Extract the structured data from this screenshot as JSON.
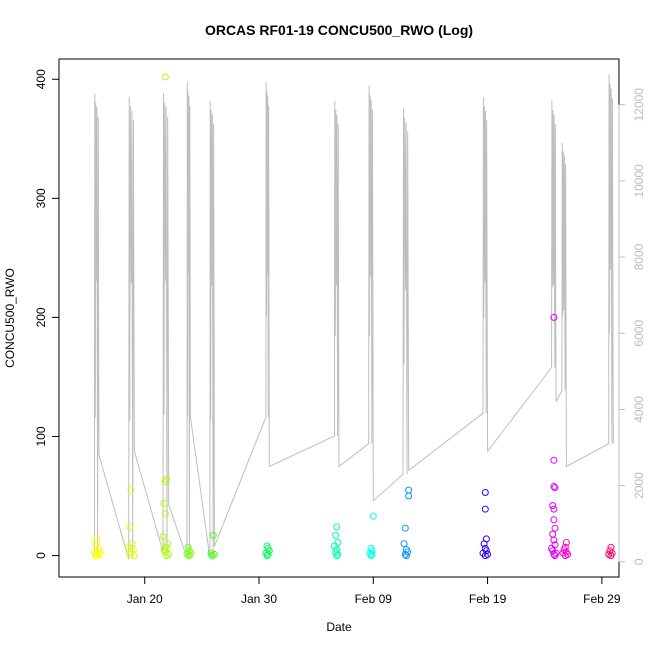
{
  "chart_data": {
    "type": "scatter",
    "title": "ORCAS RF01-19 CONCU500_RWO (Log)",
    "xlabel": "Date",
    "ylabel": "CONCU500_RWO",
    "x_ticks": [
      "Jan 20",
      "Jan 30",
      "Feb 09",
      "Feb 19",
      "Feb 29"
    ],
    "x_tick_values": [
      20,
      30,
      40,
      50,
      60
    ],
    "xlim": [
      12.5,
      61.5
    ],
    "ylim": [
      -18,
      417
    ],
    "y_ticks": [
      0,
      100,
      200,
      300,
      400
    ],
    "y2_ticks": [
      0,
      2000,
      4000,
      6000,
      8000,
      10000,
      12000
    ],
    "y2lim": [
      -400,
      13200
    ],
    "grid": false,
    "log_trace": {
      "color": "#bebebe",
      "segments": [
        {
          "x0": 15.6,
          "x1": 16.0,
          "low": 150,
          "peak": 12300,
          "end": 2800
        },
        {
          "x0": 18.6,
          "x1": 19.1,
          "low": 60,
          "peak": 12200,
          "end": 2900
        },
        {
          "x0": 21.6,
          "x1": 22.1,
          "low": 250,
          "peak": 12300,
          "end": 1500
        },
        {
          "x0": 23.7,
          "x1": 24.0,
          "low": 100,
          "peak": 12600,
          "end": 3800
        },
        {
          "x0": 25.7,
          "x1": 26.1,
          "low": 100,
          "peak": 12100,
          "end": 400
        },
        {
          "x0": 30.6,
          "x1": 30.9,
          "low": 3800,
          "peak": 12600,
          "end": 2500
        },
        {
          "x0": 36.6,
          "x1": 37.0,
          "low": 3300,
          "peak": 12100,
          "end": 2500
        },
        {
          "x0": 39.6,
          "x1": 40.0,
          "low": 3100,
          "peak": 12500,
          "end": 1600
        },
        {
          "x0": 42.6,
          "x1": 43.1,
          "low": 2300,
          "peak": 11900,
          "end": 2400
        },
        {
          "x0": 49.6,
          "x1": 50.0,
          "low": 3900,
          "peak": 12200,
          "end": 2900
        },
        {
          "x0": 55.6,
          "x1": 56.0,
          "low": 5100,
          "peak": 12100,
          "end": 4200
        },
        {
          "x0": 56.5,
          "x1": 56.9,
          "low": 4500,
          "peak": 11000,
          "end": 2500
        },
        {
          "x0": 60.6,
          "x1": 61.0,
          "low": 3100,
          "peak": 12800,
          "end": 3100
        }
      ]
    },
    "series": [
      {
        "color": "#FFFF00",
        "points": [
          [
            15.8,
            14
          ],
          [
            15.7,
            10
          ],
          [
            16.0,
            6
          ],
          [
            15.9,
            4
          ],
          [
            15.6,
            3
          ],
          [
            16.1,
            2
          ],
          [
            15.8,
            1
          ],
          [
            16.0,
            0.5
          ],
          [
            15.7,
            0
          ]
        ]
      },
      {
        "color": "#DDFF00",
        "points": [
          [
            18.8,
            55
          ],
          [
            18.7,
            24
          ],
          [
            18.9,
            10
          ],
          [
            18.6,
            7
          ],
          [
            19.0,
            5
          ],
          [
            18.8,
            3
          ],
          [
            18.7,
            1
          ],
          [
            19.1,
            0
          ]
        ]
      },
      {
        "color": "#AAFF00",
        "points": [
          [
            21.8,
            402
          ],
          [
            21.9,
            64
          ],
          [
            21.8,
            62
          ],
          [
            21.7,
            44
          ],
          [
            21.8,
            35
          ],
          [
            21.6,
            16
          ],
          [
            22.0,
            10
          ],
          [
            21.9,
            7
          ],
          [
            21.7,
            5
          ],
          [
            21.8,
            3
          ],
          [
            22.1,
            1
          ],
          [
            21.9,
            0
          ]
        ]
      },
      {
        "color": "#77FF00",
        "points": [
          [
            23.8,
            7
          ],
          [
            23.9,
            4
          ],
          [
            24.0,
            2
          ],
          [
            23.7,
            1
          ],
          [
            23.9,
            0
          ]
        ]
      },
      {
        "color": "#44FF00",
        "points": [
          [
            26.0,
            17
          ],
          [
            25.8,
            2
          ],
          [
            26.1,
            1
          ],
          [
            25.9,
            0
          ]
        ]
      },
      {
        "color": "#00FF55",
        "points": [
          [
            30.7,
            8
          ],
          [
            30.8,
            6
          ],
          [
            30.9,
            4
          ],
          [
            30.6,
            2
          ],
          [
            30.8,
            1
          ],
          [
            30.7,
            0
          ]
        ]
      },
      {
        "color": "#00FFAA",
        "points": [
          [
            36.8,
            24
          ],
          [
            36.7,
            17
          ],
          [
            36.9,
            11
          ],
          [
            36.6,
            8
          ],
          [
            36.8,
            5
          ],
          [
            36.7,
            3
          ],
          [
            36.9,
            1
          ],
          [
            36.8,
            0
          ]
        ]
      },
      {
        "color": "#00FFEE",
        "points": [
          [
            40.0,
            33
          ],
          [
            39.8,
            6
          ],
          [
            39.9,
            4
          ],
          [
            39.7,
            2
          ],
          [
            39.9,
            1
          ],
          [
            39.8,
            0
          ]
        ]
      },
      {
        "color": "#0099FF",
        "points": [
          [
            43.1,
            55
          ],
          [
            43.1,
            50
          ],
          [
            42.8,
            23
          ],
          [
            42.7,
            10
          ],
          [
            42.9,
            5
          ],
          [
            43.0,
            3
          ],
          [
            42.8,
            1
          ],
          [
            42.9,
            0
          ]
        ]
      },
      {
        "color": "#3300FF",
        "points": [
          [
            49.8,
            53
          ],
          [
            49.8,
            39
          ],
          [
            49.9,
            14
          ],
          [
            49.7,
            10
          ],
          [
            49.8,
            6
          ],
          [
            49.9,
            4
          ],
          [
            49.6,
            2
          ],
          [
            50.0,
            1
          ],
          [
            49.8,
            0
          ]
        ]
      },
      {
        "color": "#DD00FF",
        "points": [
          [
            55.8,
            200
          ],
          [
            55.8,
            80
          ],
          [
            55.8,
            58
          ],
          [
            55.9,
            57
          ],
          [
            55.7,
            42
          ],
          [
            55.8,
            39
          ],
          [
            55.8,
            30
          ],
          [
            55.9,
            23
          ],
          [
            55.7,
            18
          ],
          [
            55.8,
            13
          ],
          [
            55.9,
            9
          ],
          [
            55.6,
            6
          ],
          [
            55.7,
            4
          ],
          [
            56.0,
            2
          ],
          [
            55.8,
            1
          ],
          [
            55.9,
            0
          ]
        ]
      },
      {
        "color": "#FF00CC",
        "points": [
          [
            56.9,
            11
          ],
          [
            56.8,
            7
          ],
          [
            56.7,
            5
          ],
          [
            56.9,
            3
          ],
          [
            56.6,
            2
          ],
          [
            57.0,
            1
          ],
          [
            56.8,
            0
          ]
        ]
      },
      {
        "color": "#FF0066",
        "points": [
          [
            60.8,
            7
          ],
          [
            60.7,
            4
          ],
          [
            60.9,
            2
          ],
          [
            60.6,
            1
          ],
          [
            60.8,
            0
          ]
        ]
      }
    ]
  }
}
